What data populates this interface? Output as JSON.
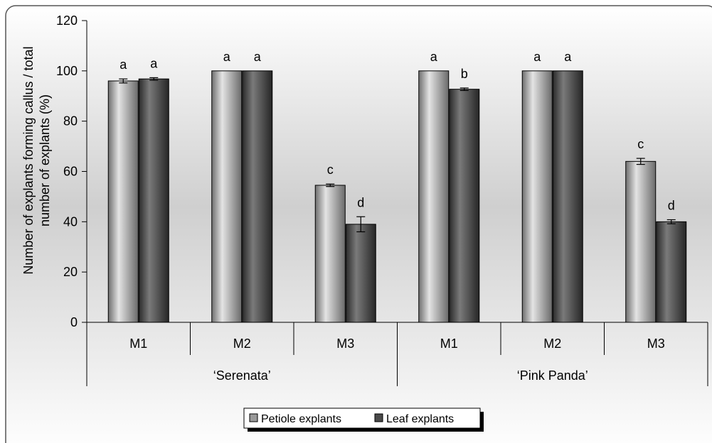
{
  "chart_data": {
    "type": "bar",
    "ylabel_lines": [
      "Number of explants forming callus / total",
      "number of explants (%)"
    ],
    "ylim": [
      0,
      120
    ],
    "yticks": [
      "0",
      "20",
      "40",
      "60",
      "80",
      "100",
      "120"
    ],
    "groups": [
      {
        "name": "‘Serenata’",
        "categories": [
          "M1",
          "M2",
          "M3"
        ]
      },
      {
        "name": "‘Pink Panda’",
        "categories": [
          "M1",
          "M2",
          "M3"
        ]
      }
    ],
    "series": [
      {
        "name": "Petiole explants",
        "color": "#9a9a9a",
        "values": [
          96,
          100,
          54.5,
          100,
          100,
          64
        ],
        "errors": [
          0.8,
          0,
          0.5,
          0,
          0,
          1.2
        ],
        "letters": [
          "a",
          "a",
          "c",
          "a",
          "a",
          "c"
        ]
      },
      {
        "name": "Leaf explants",
        "color": "#4a4a4a",
        "values": [
          96.8,
          100,
          39,
          92.7,
          100,
          40
        ],
        "errors": [
          0.5,
          0,
          3,
          0.5,
          0,
          0.8
        ],
        "letters": [
          "a",
          "a",
          "d",
          "b",
          "a",
          "d"
        ]
      }
    ],
    "legend_position": "bottom-center",
    "grid": false
  }
}
